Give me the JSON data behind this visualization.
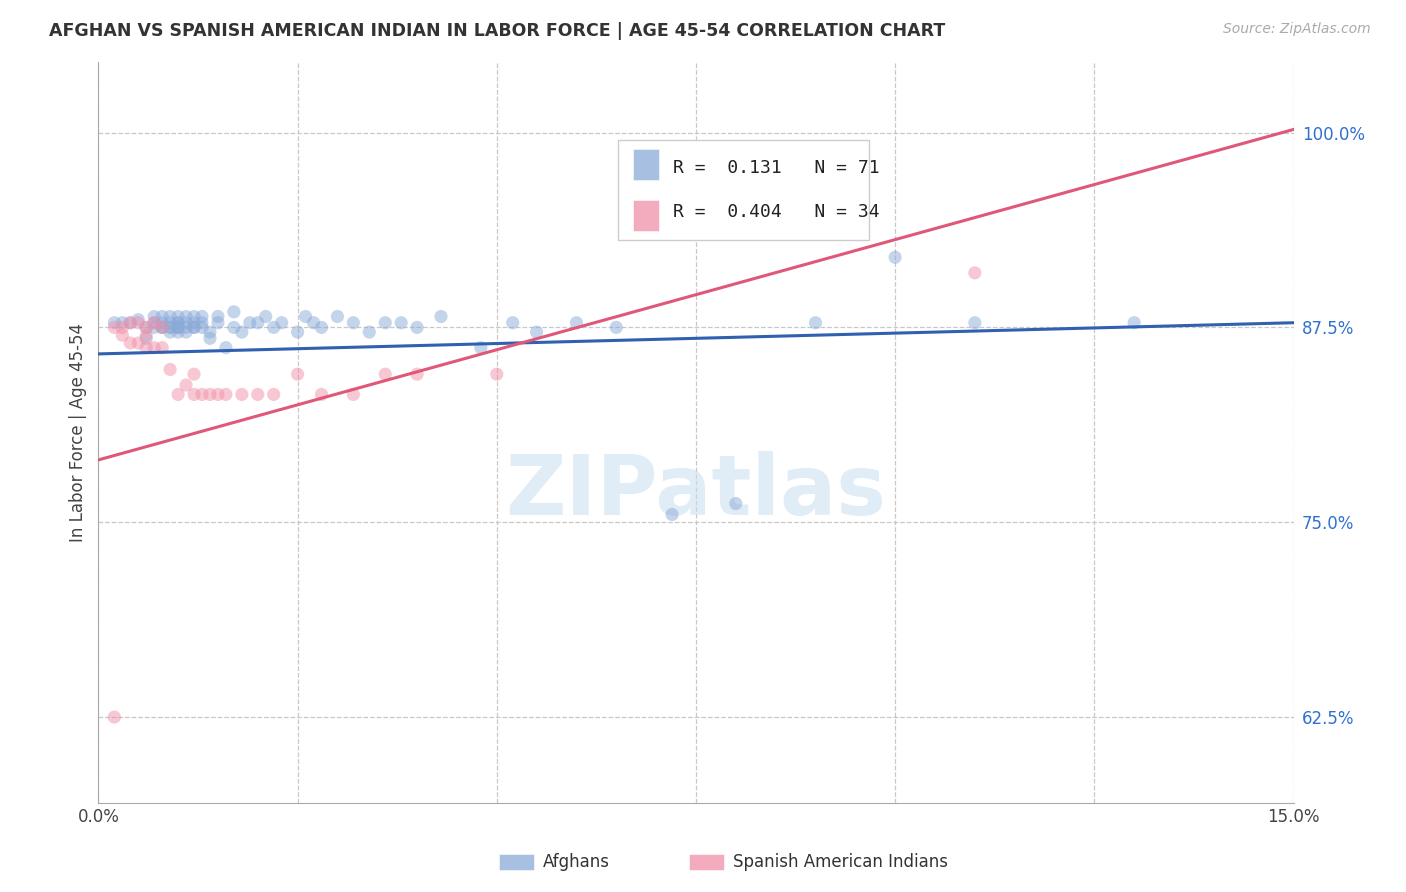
{
  "title": "AFGHAN VS SPANISH AMERICAN INDIAN IN LABOR FORCE | AGE 45-54 CORRELATION CHART",
  "source": "Source: ZipAtlas.com",
  "ylabel": "In Labor Force | Age 45-54",
  "xlim": [
    0.0,
    0.15
  ],
  "ylim": [
    0.57,
    1.045
  ],
  "xticks": [
    0.0,
    0.025,
    0.05,
    0.075,
    0.1,
    0.125,
    0.15
  ],
  "xtick_labels": [
    "0.0%",
    "",
    "",
    "",
    "",
    "",
    "15.0%"
  ],
  "ytick_positions": [
    0.625,
    0.75,
    0.875,
    1.0
  ],
  "ytick_labels": [
    "62.5%",
    "75.0%",
    "87.5%",
    "100.0%"
  ],
  "background_color": "#ffffff",
  "grid_color": "#c8c8c8",
  "watermark": "ZIPatlas",
  "legend_R_blue": "0.131",
  "legend_N_blue": "71",
  "legend_R_pink": "0.404",
  "legend_N_pink": "34",
  "blue_color": "#8aaad8",
  "pink_color": "#f090a8",
  "blue_line_color": "#3060b0",
  "pink_line_color": "#e05878",
  "blue_scatter_alpha": 0.5,
  "pink_scatter_alpha": 0.5,
  "marker_size": 90,
  "afghans_x": [
    0.002,
    0.003,
    0.004,
    0.005,
    0.006,
    0.006,
    0.007,
    0.007,
    0.007,
    0.008,
    0.008,
    0.008,
    0.008,
    0.009,
    0.009,
    0.009,
    0.009,
    0.009,
    0.01,
    0.01,
    0.01,
    0.01,
    0.01,
    0.01,
    0.01,
    0.011,
    0.011,
    0.011,
    0.011,
    0.012,
    0.012,
    0.012,
    0.012,
    0.013,
    0.013,
    0.013,
    0.014,
    0.014,
    0.015,
    0.015,
    0.016,
    0.017,
    0.017,
    0.018,
    0.019,
    0.02,
    0.021,
    0.022,
    0.023,
    0.025,
    0.026,
    0.027,
    0.028,
    0.03,
    0.032,
    0.034,
    0.036,
    0.038,
    0.04,
    0.043,
    0.048,
    0.052,
    0.055,
    0.06,
    0.065,
    0.072,
    0.08,
    0.09,
    0.1,
    0.11,
    0.13
  ],
  "afghans_y": [
    0.878,
    0.878,
    0.878,
    0.88,
    0.868,
    0.875,
    0.878,
    0.875,
    0.882,
    0.875,
    0.878,
    0.875,
    0.882,
    0.875,
    0.872,
    0.878,
    0.875,
    0.882,
    0.878,
    0.875,
    0.872,
    0.878,
    0.875,
    0.882,
    0.875,
    0.882,
    0.878,
    0.875,
    0.872,
    0.878,
    0.875,
    0.882,
    0.875,
    0.878,
    0.875,
    0.882,
    0.872,
    0.868,
    0.882,
    0.878,
    0.862,
    0.885,
    0.875,
    0.872,
    0.878,
    0.878,
    0.882,
    0.875,
    0.878,
    0.872,
    0.882,
    0.878,
    0.875,
    0.882,
    0.878,
    0.872,
    0.878,
    0.878,
    0.875,
    0.882,
    0.862,
    0.878,
    0.872,
    0.878,
    0.875,
    0.755,
    0.762,
    0.878,
    0.92,
    0.878,
    0.878
  ],
  "spanish_x": [
    0.002,
    0.003,
    0.003,
    0.004,
    0.004,
    0.005,
    0.005,
    0.006,
    0.006,
    0.006,
    0.007,
    0.007,
    0.008,
    0.008,
    0.009,
    0.01,
    0.011,
    0.012,
    0.012,
    0.013,
    0.014,
    0.015,
    0.016,
    0.018,
    0.02,
    0.022,
    0.025,
    0.028,
    0.032,
    0.036,
    0.04,
    0.05,
    0.11,
    0.002
  ],
  "spanish_y": [
    0.875,
    0.875,
    0.87,
    0.878,
    0.865,
    0.878,
    0.865,
    0.875,
    0.862,
    0.87,
    0.878,
    0.862,
    0.875,
    0.862,
    0.848,
    0.832,
    0.838,
    0.845,
    0.832,
    0.832,
    0.832,
    0.832,
    0.832,
    0.832,
    0.832,
    0.832,
    0.845,
    0.832,
    0.832,
    0.845,
    0.845,
    0.845,
    0.91,
    0.625
  ],
  "blue_trendline_x": [
    0.0,
    0.15
  ],
  "blue_trendline_y": [
    0.858,
    0.878
  ],
  "pink_trendline_x": [
    0.0,
    0.15
  ],
  "pink_trendline_y": [
    0.79,
    1.002
  ]
}
